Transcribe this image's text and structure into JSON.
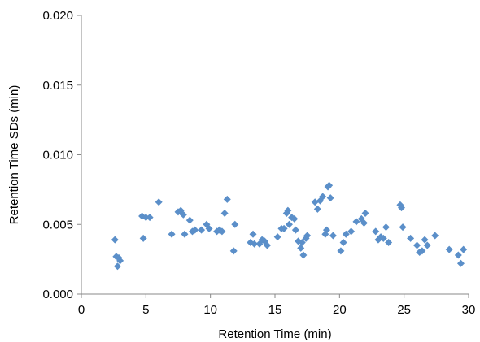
{
  "chart_data": {
    "type": "scatter",
    "title": "",
    "xlabel": "Retention Time (min)",
    "ylabel": "Retention Time SDs (min)",
    "xlim": [
      0,
      30
    ],
    "ylim": [
      0,
      0.02
    ],
    "xticks": [
      0,
      5,
      10,
      15,
      20,
      25,
      30
    ],
    "xtick_labels": [
      "0",
      "5",
      "10",
      "15",
      "20",
      "25",
      "30"
    ],
    "yticks": [
      0,
      0.005,
      0.01,
      0.015,
      0.02
    ],
    "ytick_labels": [
      "0.000",
      "0.005",
      "0.010",
      "0.015",
      "0.020"
    ],
    "grid": false,
    "legend": "none",
    "marker": "diamond",
    "color": "#5b8fc9",
    "series": [
      {
        "points": [
          [
            2.6,
            0.0039
          ],
          [
            2.7,
            0.0027
          ],
          [
            2.8,
            0.002
          ],
          [
            2.9,
            0.0026
          ],
          [
            3.0,
            0.0024
          ],
          [
            4.7,
            0.0056
          ],
          [
            4.8,
            0.004
          ],
          [
            5.0,
            0.0055
          ],
          [
            5.3,
            0.0055
          ],
          [
            6.0,
            0.0066
          ],
          [
            7.0,
            0.0043
          ],
          [
            7.5,
            0.0059
          ],
          [
            7.7,
            0.006
          ],
          [
            7.9,
            0.0057
          ],
          [
            8.0,
            0.0043
          ],
          [
            8.4,
            0.0053
          ],
          [
            8.6,
            0.0045
          ],
          [
            8.8,
            0.0046
          ],
          [
            9.3,
            0.0046
          ],
          [
            9.7,
            0.005
          ],
          [
            9.9,
            0.0047
          ],
          [
            10.5,
            0.0045
          ],
          [
            10.7,
            0.0046
          ],
          [
            10.9,
            0.0045
          ],
          [
            11.1,
            0.0058
          ],
          [
            11.3,
            0.0068
          ],
          [
            11.8,
            0.0031
          ],
          [
            11.9,
            0.005
          ],
          [
            13.1,
            0.0037
          ],
          [
            13.3,
            0.0043
          ],
          [
            13.4,
            0.0036
          ],
          [
            13.8,
            0.0036
          ],
          [
            14.0,
            0.0039
          ],
          [
            14.2,
            0.0038
          ],
          [
            14.4,
            0.0035
          ],
          [
            15.2,
            0.0041
          ],
          [
            15.5,
            0.0047
          ],
          [
            15.7,
            0.0047
          ],
          [
            15.9,
            0.0058
          ],
          [
            16.0,
            0.006
          ],
          [
            16.1,
            0.005
          ],
          [
            16.3,
            0.0055
          ],
          [
            16.5,
            0.0054
          ],
          [
            16.6,
            0.0046
          ],
          [
            16.8,
            0.0038
          ],
          [
            17.0,
            0.0033
          ],
          [
            17.1,
            0.0037
          ],
          [
            17.2,
            0.0028
          ],
          [
            17.4,
            0.004
          ],
          [
            17.5,
            0.0042
          ],
          [
            18.1,
            0.0066
          ],
          [
            18.3,
            0.0061
          ],
          [
            18.5,
            0.0067
          ],
          [
            18.7,
            0.007
          ],
          [
            18.9,
            0.0043
          ],
          [
            19.0,
            0.0046
          ],
          [
            19.1,
            0.0077
          ],
          [
            19.2,
            0.0078
          ],
          [
            19.3,
            0.0069
          ],
          [
            19.5,
            0.0042
          ],
          [
            20.1,
            0.0031
          ],
          [
            20.3,
            0.0037
          ],
          [
            20.5,
            0.0043
          ],
          [
            20.9,
            0.0045
          ],
          [
            21.3,
            0.0052
          ],
          [
            21.7,
            0.0054
          ],
          [
            21.9,
            0.0051
          ],
          [
            22.0,
            0.0058
          ],
          [
            22.8,
            0.0045
          ],
          [
            23.0,
            0.0039
          ],
          [
            23.2,
            0.0041
          ],
          [
            23.4,
            0.004
          ],
          [
            23.6,
            0.0048
          ],
          [
            23.8,
            0.0037
          ],
          [
            24.7,
            0.0064
          ],
          [
            24.8,
            0.0062
          ],
          [
            24.9,
            0.0048
          ],
          [
            25.5,
            0.004
          ],
          [
            26.0,
            0.0035
          ],
          [
            26.2,
            0.003
          ],
          [
            26.4,
            0.0031
          ],
          [
            26.6,
            0.0039
          ],
          [
            26.8,
            0.0035
          ],
          [
            27.4,
            0.0042
          ],
          [
            28.5,
            0.0032
          ],
          [
            29.2,
            0.0028
          ],
          [
            29.4,
            0.0022
          ],
          [
            29.6,
            0.0032
          ]
        ]
      }
    ]
  }
}
